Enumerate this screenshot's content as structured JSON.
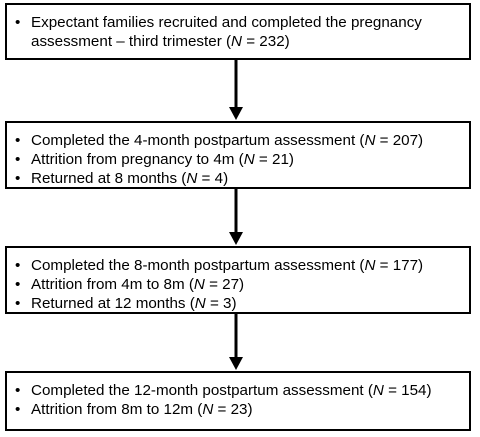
{
  "flowchart": {
    "boxes": [
      {
        "items": [
          {
            "text": "Expectant families recruited and completed the pregnancy assessment – third trimester (",
            "n_symbol": "N",
            "n_value": " = 232)"
          }
        ]
      },
      {
        "items": [
          {
            "text": "Completed the 4-month postpartum assessment (",
            "n_symbol": "N",
            "n_value": " = 207)"
          },
          {
            "text": "Attrition from pregnancy to 4m (",
            "n_symbol": "N",
            "n_value": " = 21)"
          },
          {
            "text": "Returned at 8 months (",
            "n_symbol": "N",
            "n_value": " = 4)"
          }
        ]
      },
      {
        "items": [
          {
            "text": "Completed the 8-month postpartum assessment (",
            "n_symbol": "N",
            "n_value": " = 177)"
          },
          {
            "text": "Attrition from 4m to 8m (",
            "n_symbol": "N",
            "n_value": " = 27)"
          },
          {
            "text": "Returned at 12 months (",
            "n_symbol": "N",
            "n_value": " = 3)"
          }
        ]
      },
      {
        "items": [
          {
            "text": "Completed the 12-month postpartum assessment (",
            "n_symbol": "N",
            "n_value": " = 154)"
          },
          {
            "text": "Attrition from 8m to 12m (",
            "n_symbol": "N",
            "n_value": " = 23)"
          }
        ]
      }
    ],
    "bullet": "•",
    "colors": {
      "border": "#000000",
      "text": "#000000",
      "background": "#ffffff"
    }
  }
}
